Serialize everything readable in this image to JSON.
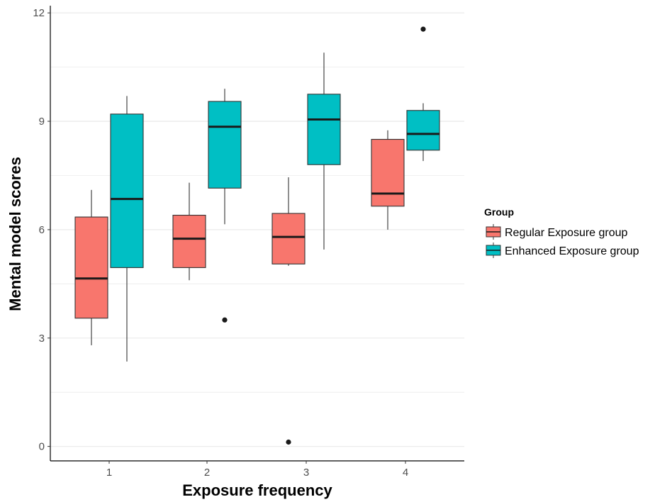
{
  "chart_data": {
    "type": "boxplot",
    "xlabel": "Exposure frequency",
    "ylabel": "Mental model scores",
    "categories": [
      "1",
      "2",
      "3",
      "4"
    ],
    "ylim": [
      -0.4,
      12.2
    ],
    "yticks": [
      0,
      3,
      6,
      9,
      12
    ],
    "grid": "horizontal",
    "legend": {
      "title": "Group",
      "position": "right"
    },
    "series": [
      {
        "name": "Regular Exposure group",
        "color": "#F8766D",
        "boxes": [
          {
            "min": 2.8,
            "q1": 3.55,
            "median": 4.65,
            "q3": 6.35,
            "max": 7.1,
            "outliers": []
          },
          {
            "min": 4.6,
            "q1": 4.95,
            "median": 5.75,
            "q3": 6.4,
            "max": 7.3,
            "outliers": []
          },
          {
            "min": 5.0,
            "q1": 5.05,
            "median": 5.8,
            "q3": 6.45,
            "max": 7.45,
            "outliers": [
              0.12
            ]
          },
          {
            "min": 6.0,
            "q1": 6.65,
            "median": 7.0,
            "q3": 8.5,
            "max": 8.75,
            "outliers": []
          }
        ]
      },
      {
        "name": "Enhanced Exposure group",
        "color": "#00BFC4",
        "boxes": [
          {
            "min": 2.35,
            "q1": 4.95,
            "median": 6.85,
            "q3": 9.2,
            "max": 9.7,
            "outliers": []
          },
          {
            "min": 6.15,
            "q1": 7.15,
            "median": 8.85,
            "q3": 9.55,
            "max": 9.9,
            "outliers": [
              3.5
            ]
          },
          {
            "min": 5.45,
            "q1": 7.8,
            "median": 9.05,
            "q3": 9.75,
            "max": 10.9,
            "outliers": []
          },
          {
            "min": 7.9,
            "q1": 8.2,
            "median": 8.65,
            "q3": 9.3,
            "max": 9.5,
            "outliers": [
              11.55
            ]
          }
        ]
      }
    ]
  }
}
